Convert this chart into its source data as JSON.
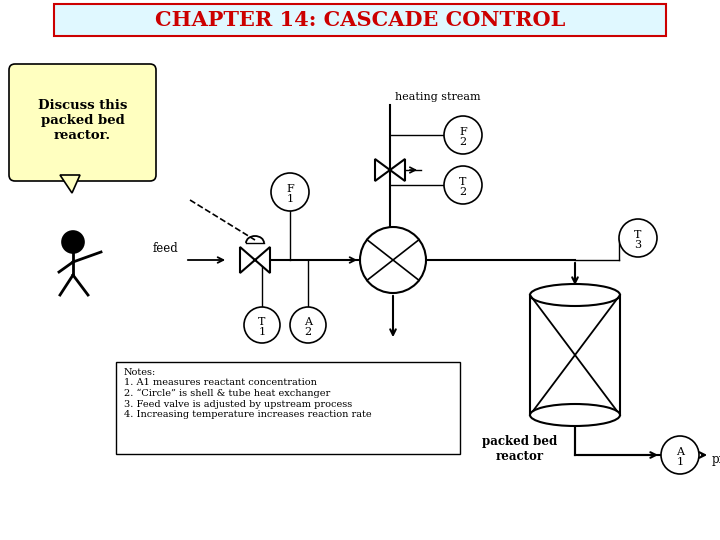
{
  "title": "CHAPTER 14: CASCADE CONTROL",
  "title_color": "#cc0000",
  "title_bg": "#e0f8ff",
  "title_border": "#cc0000",
  "speech_text": "Discuss this\npacked bed\nreactor.",
  "speech_bg": "#ffffc0",
  "notes_text": "Notes:\n1. A1 measures reactant concentration\n2. “Circle” is shell & tube heat exchanger\n3. Feed valve is adjusted by upstream process\n4. Increasing temperature increases reaction rate",
  "bg_color": "#ffffff",
  "figsize": [
    7.2,
    5.4
  ],
  "dpi": 100
}
